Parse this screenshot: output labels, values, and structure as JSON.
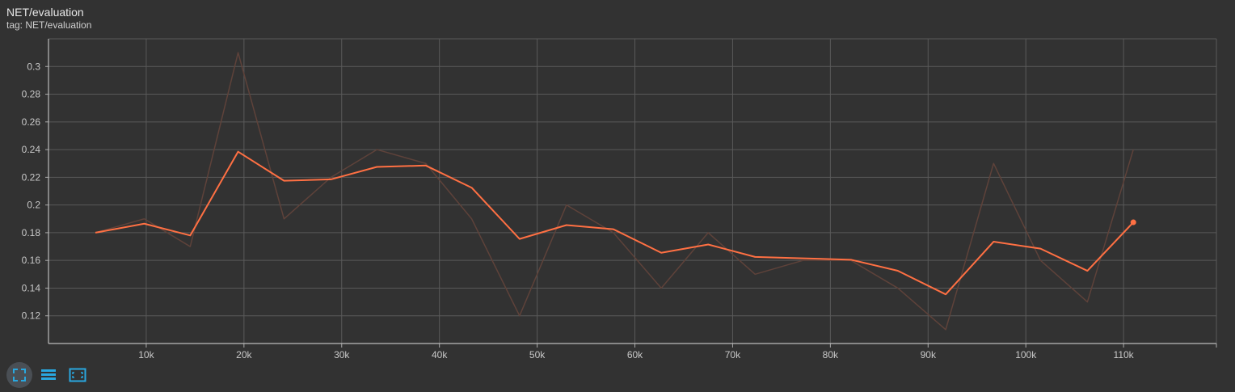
{
  "header": {
    "title": "NET/evaluation",
    "subtitle": "tag: NET/evaluation"
  },
  "toolbar": {
    "buttons": [
      {
        "icon": "fullscreen-icon"
      },
      {
        "icon": "data-table-icon"
      },
      {
        "icon": "fit-domain-icon"
      }
    ]
  },
  "colors": {
    "background": "#323232",
    "grid": "#5a5a5a",
    "smoothed": "#ff7043",
    "raw": "#5e423a",
    "accent": "#29a8e0"
  },
  "chart_data": {
    "type": "line",
    "title": "NET/evaluation",
    "xlabel": "",
    "ylabel": "",
    "xlim": [
      0,
      119500
    ],
    "ylim": [
      0.1,
      0.32
    ],
    "grid": true,
    "x_ticks": [
      10000,
      20000,
      30000,
      40000,
      50000,
      60000,
      70000,
      80000,
      90000,
      100000,
      110000
    ],
    "x_tick_labels": [
      "10k",
      "20k",
      "30k",
      "40k",
      "50k",
      "60k",
      "70k",
      "80k",
      "90k",
      "100k",
      "110k"
    ],
    "y_ticks": [
      0.12,
      0.14,
      0.16,
      0.18,
      0.2,
      0.22,
      0.24,
      0.26,
      0.28,
      0.3
    ],
    "y_tick_labels": [
      "0.12",
      "0.14",
      "0.16",
      "0.18",
      "0.2",
      "0.22",
      "0.24",
      "0.26",
      "0.28",
      "0.3"
    ],
    "series": [
      {
        "role": "raw",
        "x": [
          4800,
          9800,
          14500,
          19400,
          24100,
          28900,
          33600,
          38600,
          43300,
          48200,
          53000,
          57800,
          62700,
          67500,
          72300,
          77200,
          82100,
          86900,
          91800,
          96700,
          101500,
          106300,
          111000
        ],
        "y": [
          0.18,
          0.19,
          0.17,
          0.31,
          0.19,
          0.22,
          0.24,
          0.23,
          0.19,
          0.12,
          0.2,
          0.18,
          0.14,
          0.18,
          0.15,
          0.16,
          0.16,
          0.14,
          0.11,
          0.23,
          0.16,
          0.13,
          0.24
        ]
      },
      {
        "role": "smoothed",
        "x": [
          4800,
          9800,
          14500,
          19400,
          24100,
          28900,
          33600,
          38600,
          43300,
          48200,
          53000,
          57800,
          62700,
          67500,
          72300,
          77200,
          82100,
          86900,
          91800,
          96700,
          101500,
          106300,
          111000
        ],
        "y": [
          0.18,
          0.1865,
          0.178,
          0.2385,
          0.2175,
          0.2185,
          0.2275,
          0.2285,
          0.2125,
          0.1755,
          0.1855,
          0.1825,
          0.1655,
          0.1715,
          0.1625,
          0.1615,
          0.1605,
          0.1525,
          0.1355,
          0.1735,
          0.1685,
          0.1525,
          0.1875
        ]
      }
    ]
  }
}
